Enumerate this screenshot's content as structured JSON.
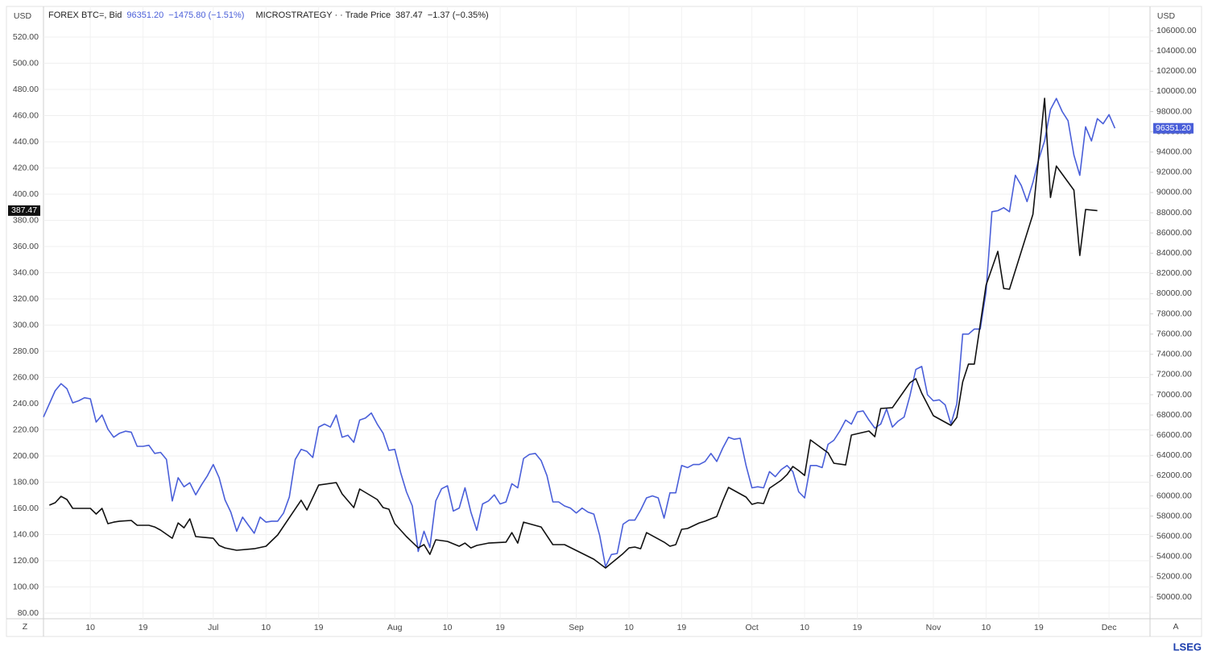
{
  "chart_data": {
    "type": "line",
    "y_unit": "USD",
    "y2_unit": "USD",
    "grid": true,
    "ui": {
      "left_button": "Z",
      "right_button": "A",
      "brand": "LSEG"
    },
    "xlim": [
      0,
      189
    ],
    "xticks": [
      {
        "value": 8,
        "label": "10"
      },
      {
        "value": 17,
        "label": "19"
      },
      {
        "value": 29,
        "label": "Jul"
      },
      {
        "value": 38,
        "label": "10"
      },
      {
        "value": 47,
        "label": "19"
      },
      {
        "value": 60,
        "label": "Aug"
      },
      {
        "value": 69,
        "label": "10"
      },
      {
        "value": 78,
        "label": "19"
      },
      {
        "value": 91,
        "label": "Sep"
      },
      {
        "value": 100,
        "label": "10"
      },
      {
        "value": 109,
        "label": "19"
      },
      {
        "value": 121,
        "label": "Oct"
      },
      {
        "value": 130,
        "label": "10"
      },
      {
        "value": 139,
        "label": "19"
      },
      {
        "value": 152,
        "label": "Nov"
      },
      {
        "value": 161,
        "label": "10"
      },
      {
        "value": 170,
        "label": "19"
      },
      {
        "value": 182,
        "label": "Dec"
      }
    ],
    "ylim": [
      75.7,
      543.4
    ],
    "yticks": [
      {
        "value": 80,
        "label": "80.00"
      },
      {
        "value": 100,
        "label": "100.00"
      },
      {
        "value": 120,
        "label": "120.00"
      },
      {
        "value": 140,
        "label": "140.00"
      },
      {
        "value": 160,
        "label": "160.00"
      },
      {
        "value": 180,
        "label": "180.00"
      },
      {
        "value": 200,
        "label": "200.00"
      },
      {
        "value": 220,
        "label": "220.00"
      },
      {
        "value": 240,
        "label": "240.00"
      },
      {
        "value": 260,
        "label": "260.00"
      },
      {
        "value": 280,
        "label": "280.00"
      },
      {
        "value": 300,
        "label": "300.00"
      },
      {
        "value": 320,
        "label": "320.00"
      },
      {
        "value": 340,
        "label": "340.00"
      },
      {
        "value": 360,
        "label": "360.00"
      },
      {
        "value": 380,
        "label": "380.00"
      },
      {
        "value": 400,
        "label": "400.00"
      },
      {
        "value": 420,
        "label": "420.00"
      },
      {
        "value": 440,
        "label": "440.00"
      },
      {
        "value": 460,
        "label": "460.00"
      },
      {
        "value": 480,
        "label": "480.00"
      },
      {
        "value": 500,
        "label": "500.00"
      },
      {
        "value": 520,
        "label": "520.00"
      }
    ],
    "y2lim": [
      47850,
      108400
    ],
    "y2ticks": [
      {
        "value": 50000,
        "label": "50000.00"
      },
      {
        "value": 52000,
        "label": "52000.00"
      },
      {
        "value": 54000,
        "label": "54000.00"
      },
      {
        "value": 56000,
        "label": "56000.00"
      },
      {
        "value": 58000,
        "label": "58000.00"
      },
      {
        "value": 60000,
        "label": "60000.00"
      },
      {
        "value": 62000,
        "label": "62000.00"
      },
      {
        "value": 64000,
        "label": "64000.00"
      },
      {
        "value": 66000,
        "label": "66000.00"
      },
      {
        "value": 68000,
        "label": "68000.00"
      },
      {
        "value": 70000,
        "label": "70000.00"
      },
      {
        "value": 72000,
        "label": "72000.00"
      },
      {
        "value": 74000,
        "label": "74000.00"
      },
      {
        "value": 76000,
        "label": "76000.00"
      },
      {
        "value": 78000,
        "label": "78000.00"
      },
      {
        "value": 80000,
        "label": "80000.00"
      },
      {
        "value": 82000,
        "label": "82000.00"
      },
      {
        "value": 84000,
        "label": "84000.00"
      },
      {
        "value": 86000,
        "label": "86000.00"
      },
      {
        "value": 88000,
        "label": "88000.00"
      },
      {
        "value": 90000,
        "label": "90000.00"
      },
      {
        "value": 92000,
        "label": "92000.00"
      },
      {
        "value": 94000,
        "label": "94000.00"
      },
      {
        "value": 96000,
        "label": "96000.00"
      },
      {
        "value": 98000,
        "label": "98000.00"
      },
      {
        "value": 100000,
        "label": "100000.00"
      },
      {
        "value": 102000,
        "label": "102000.00"
      },
      {
        "value": 104000,
        "label": "104000.00"
      },
      {
        "value": 106000,
        "label": "106000.00"
      }
    ],
    "series": [
      {
        "name": "FOREX BTC=, Bid",
        "quote": "96351.20",
        "change": "−1475.80 (−1.51%)",
        "color": "#4a5fd9",
        "axis": "y2",
        "x": [
          0,
          2,
          3,
          4,
          5,
          6,
          7,
          8,
          9,
          10,
          11,
          12,
          13,
          14,
          15,
          16,
          17,
          18,
          19,
          20,
          21,
          22,
          23,
          24,
          25,
          26,
          27,
          28,
          29,
          30,
          31,
          32,
          33,
          34,
          35,
          36,
          37,
          38,
          39,
          40,
          41,
          42,
          43,
          44,
          45,
          46,
          47,
          48,
          49,
          50,
          51,
          52,
          53,
          54,
          55,
          56,
          57,
          58,
          59,
          60,
          61,
          62,
          63,
          64,
          65,
          66,
          67,
          68,
          69,
          70,
          71,
          72,
          73,
          74,
          75,
          76,
          77,
          78,
          79,
          80,
          81,
          82,
          83,
          84,
          85,
          86,
          87,
          88,
          89,
          90,
          91,
          92,
          93,
          94,
          95,
          96,
          97,
          98,
          99,
          100,
          101,
          102,
          103,
          104,
          105,
          106,
          107,
          108,
          109,
          110,
          111,
          112,
          113,
          114,
          115,
          116,
          117,
          118,
          119,
          120,
          121,
          122,
          123,
          124,
          125,
          126,
          127,
          128,
          129,
          130,
          131,
          132,
          133,
          134,
          135,
          136,
          137,
          138,
          139,
          140,
          141,
          142,
          143,
          144,
          145,
          146,
          147,
          148,
          149,
          150,
          151,
          152,
          153,
          154,
          155,
          156,
          157,
          158,
          159,
          160,
          161,
          162,
          163,
          164,
          165,
          166,
          167,
          168,
          169,
          170,
          171,
          172,
          173,
          174,
          175,
          176,
          177,
          178,
          179,
          180,
          181,
          182,
          183
        ],
        "values": [
          67800,
          70400,
          71100,
          70600,
          69200,
          69400,
          69700,
          69600,
          67300,
          68000,
          66600,
          65800,
          66200,
          66400,
          66300,
          64900,
          64900,
          65000,
          64200,
          64300,
          63600,
          59500,
          61800,
          60900,
          61300,
          60100,
          61100,
          62000,
          63100,
          61800,
          59600,
          58400,
          56500,
          57900,
          57100,
          56300,
          57900,
          57400,
          57500,
          57500,
          58300,
          59900,
          63600,
          64600,
          64400,
          63800,
          66800,
          67100,
          66800,
          68000,
          65800,
          66000,
          65300,
          67500,
          67700,
          68200,
          67100,
          66200,
          64500,
          64600,
          62300,
          60400,
          59000,
          54500,
          56500,
          54900,
          59500,
          60700,
          61000,
          58500,
          58800,
          60800,
          58400,
          56600,
          59200,
          59500,
          60100,
          59200,
          59400,
          61200,
          60800,
          63700,
          64100,
          64200,
          63500,
          62000,
          59400,
          59400,
          59000,
          58800,
          58300,
          58800,
          58400,
          58200,
          56100,
          53000,
          54200,
          54300,
          57200,
          57600,
          57600,
          58600,
          59800,
          60000,
          59800,
          57800,
          60300,
          60300,
          63000,
          62800,
          63100,
          63100,
          63400,
          64200,
          63400,
          64700,
          65800,
          65600,
          65700,
          63000,
          60800,
          60900,
          60800,
          62400,
          61900,
          62600,
          63000,
          62400,
          60400,
          59800,
          63000,
          63000,
          62800,
          65100,
          65500,
          66400,
          67500,
          67100,
          68300,
          68400,
          67500,
          66700,
          67100,
          68600,
          66800,
          67400,
          67800,
          69900,
          72500,
          72800,
          70000,
          69400,
          69500,
          69000,
          67100,
          69100,
          76000,
          76000,
          76500,
          76500,
          80200,
          88100,
          88200,
          88500,
          88100,
          91700,
          90700,
          89100,
          91000,
          93300,
          95100,
          98200,
          99300,
          98000,
          97100,
          93700,
          91700,
          96500,
          95100,
          97300,
          96800,
          97700,
          96351.2
        ]
      },
      {
        "name": "MICROSTRATEGY · · Trade Price",
        "quote": "387.47",
        "change": "−1.37 (−0.35%)",
        "color": "#111111",
        "axis": "y",
        "x": [
          1,
          2,
          3,
          4,
          5,
          6,
          8,
          9,
          10,
          11,
          12,
          13,
          15,
          16,
          18,
          19,
          20,
          22,
          23,
          24,
          25,
          26,
          29,
          30,
          31,
          33,
          36,
          38,
          40,
          44,
          45,
          47,
          50,
          51,
          53,
          54,
          57,
          58,
          59,
          60,
          62,
          64,
          65,
          66,
          67,
          69,
          71,
          72,
          73,
          74,
          76,
          79,
          80,
          81,
          82,
          85,
          87,
          89,
          94,
          96,
          98,
          99,
          100,
          101,
          102,
          103,
          106,
          107,
          108,
          109,
          110,
          112,
          113,
          115,
          116,
          117,
          120,
          121,
          122,
          123,
          124,
          126,
          127,
          128,
          129,
          130,
          131,
          134,
          135,
          137,
          138,
          141,
          142,
          143,
          145,
          148,
          149,
          150,
          152,
          155,
          156,
          157,
          158,
          159,
          161,
          163,
          164,
          165,
          169,
          171,
          172,
          173,
          176,
          177,
          178,
          180
        ],
        "values": [
          162.5,
          164.3,
          169.2,
          166.8,
          160.0,
          160.0,
          160.0,
          155.7,
          160.0,
          148.3,
          149.5,
          150.2,
          150.8,
          147.1,
          147.1,
          145.8,
          143.4,
          137.2,
          148.9,
          145.2,
          152.0,
          138.5,
          137.2,
          131.7,
          129.8,
          128.0,
          129.2,
          131.1,
          139.7,
          166.2,
          158.8,
          177.8,
          179.7,
          171.1,
          160.6,
          174.8,
          166.8,
          160.6,
          159.4,
          148.3,
          138.5,
          129.8,
          132.3,
          124.9,
          136.0,
          134.8,
          131.1,
          133.5,
          129.8,
          131.7,
          133.5,
          134.2,
          141.5,
          133.5,
          149.5,
          145.8,
          132.3,
          132.3,
          121.2,
          114.5,
          121.8,
          125.5,
          129.8,
          130.5,
          129.2,
          141.5,
          134.2,
          131.1,
          132.3,
          144.0,
          144.6,
          148.9,
          150.2,
          153.8,
          165.5,
          176.0,
          168.6,
          163.1,
          164.3,
          163.7,
          175.4,
          181.5,
          185.8,
          192.0,
          188.9,
          185.2,
          212.3,
          202.5,
          194.5,
          193.2,
          216.0,
          219.1,
          214.8,
          236.3,
          236.9,
          256.0,
          259.1,
          248.0,
          230.8,
          223.4,
          229.5,
          256.6,
          270.2,
          270.2,
          330.5,
          356.3,
          328.0,
          327.4,
          384.6,
          473.2,
          397.5,
          421.5,
          403.1,
          353.2,
          388.3,
          387.47
        ]
      }
    ]
  }
}
